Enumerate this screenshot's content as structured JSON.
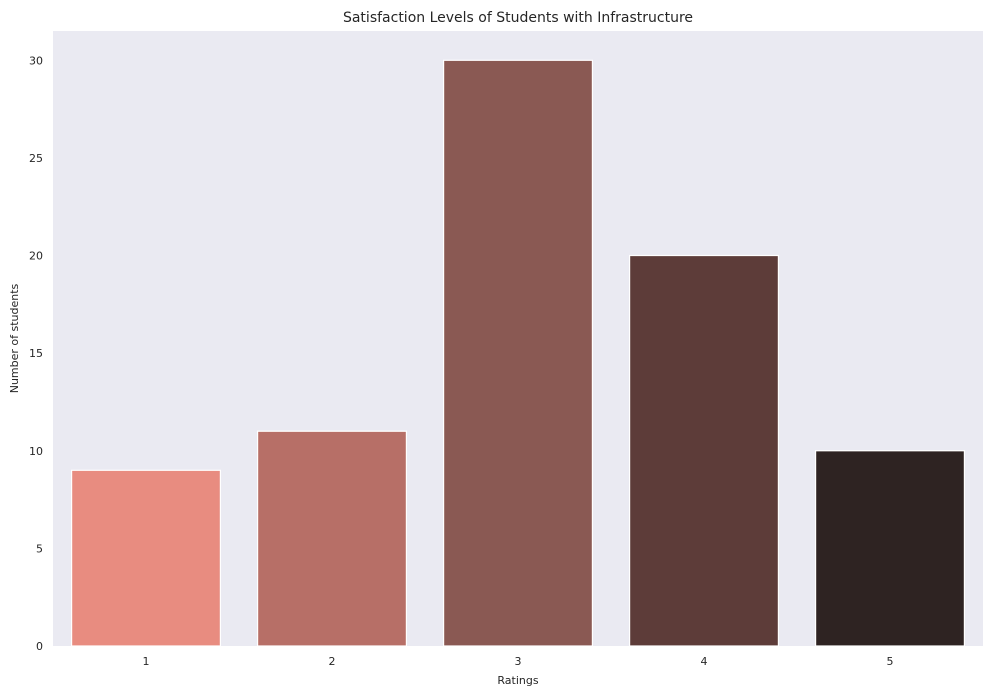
{
  "chart_data": {
    "type": "bar",
    "title": "Satisfaction Levels of Students with Infrastructure",
    "xlabel": "Ratings",
    "ylabel": "Number of students",
    "categories": [
      "1",
      "2",
      "3",
      "4",
      "5"
    ],
    "values": [
      9,
      11,
      30,
      20,
      10
    ],
    "bar_colors": [
      "#e88c80",
      "#b76f67",
      "#8a5953",
      "#5d3c39",
      "#2e2322"
    ],
    "ylim": [
      0,
      31.5
    ],
    "yticks": [
      0,
      5,
      10,
      15,
      20,
      25,
      30
    ],
    "grid": false,
    "plot_background": "#eaeaf2",
    "bar_edge_color": "#ffffff"
  }
}
